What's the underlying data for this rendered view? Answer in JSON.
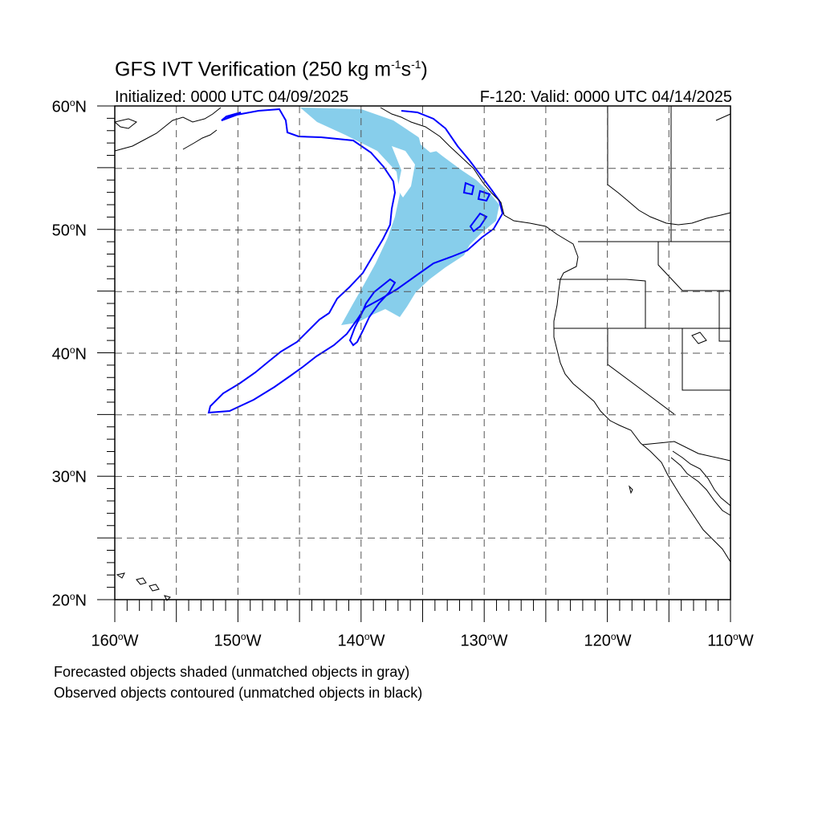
{
  "title": {
    "prefix": "GFS IVT Verification (250 kg m",
    "exp1": "-1",
    "mid": "s",
    "exp2": "-1",
    "suffix": ")"
  },
  "subtitle_left": "Initialized: 0000 UTC 04/09/2025",
  "subtitle_right": "F-120: Valid: 0000 UTC 04/14/2025",
  "lat_labels": [
    {
      "num": "60",
      "hemi": "N"
    },
    {
      "num": "50",
      "hemi": "N"
    },
    {
      "num": "40",
      "hemi": "N"
    },
    {
      "num": "30",
      "hemi": "N"
    },
    {
      "num": "20",
      "hemi": "N"
    }
  ],
  "lon_labels": [
    {
      "num": "160",
      "hemi": "W"
    },
    {
      "num": "150",
      "hemi": "W"
    },
    {
      "num": "140",
      "hemi": "W"
    },
    {
      "num": "130",
      "hemi": "W"
    },
    {
      "num": "120",
      "hemi": "W"
    },
    {
      "num": "110",
      "hemi": "W"
    }
  ],
  "caption_line1": "Forecasted objects shaded (unmatched objects in gray)",
  "caption_line2": "Observed objects contoured (unmatched objects in black)",
  "colors": {
    "forecast_fill": "#87ceeb",
    "observed_contour": "#0000ff",
    "coastline": "#000000",
    "grid": "#555555"
  }
}
